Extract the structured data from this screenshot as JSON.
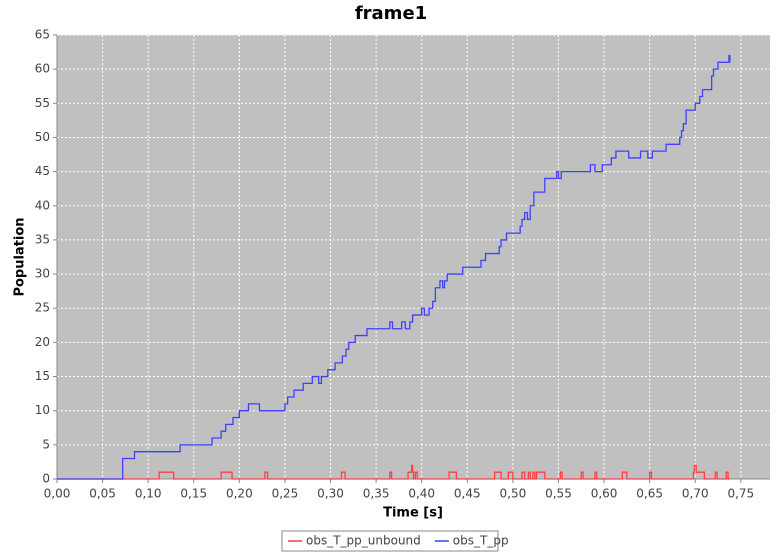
{
  "chart_data": {
    "type": "line",
    "step": true,
    "title": "frame1",
    "x_label": "Time [s]",
    "y_label": "Population",
    "xlim": [
      0,
      0.782
    ],
    "ylim": [
      0,
      65
    ],
    "xticks": [
      {
        "value": 0,
        "label": "0,00"
      },
      {
        "value": 0.05,
        "label": "0,05"
      },
      {
        "value": 0.1,
        "label": "0,10"
      },
      {
        "value": 0.15,
        "label": "0,15"
      },
      {
        "value": 0.2,
        "label": "0,20"
      },
      {
        "value": 0.25,
        "label": "0,25"
      },
      {
        "value": 0.3,
        "label": "0,30"
      },
      {
        "value": 0.35,
        "label": "0,35"
      },
      {
        "value": 0.4,
        "label": "0,40"
      },
      {
        "value": 0.45,
        "label": "0,45"
      },
      {
        "value": 0.5,
        "label": "0,50"
      },
      {
        "value": 0.55,
        "label": "0,55"
      },
      {
        "value": 0.6,
        "label": "0,60"
      },
      {
        "value": 0.65,
        "label": "0,65"
      },
      {
        "value": 0.7,
        "label": "0,70"
      },
      {
        "value": 0.75,
        "label": "0,75"
      }
    ],
    "yticks": [
      0,
      5,
      10,
      15,
      20,
      25,
      30,
      35,
      40,
      45,
      50,
      55,
      60,
      65
    ],
    "grid": true,
    "legend": "bottom",
    "series": [
      {
        "name": "obs_T_pp_unbound",
        "color": "#ff4040",
        "x": [
          0,
          0.112,
          0.128,
          0.18,
          0.192,
          0.228,
          0.231,
          0.312,
          0.316,
          0.365,
          0.367,
          0.385,
          0.389,
          0.39,
          0.391,
          0.393,
          0.395,
          0.43,
          0.438,
          0.48,
          0.487,
          0.495,
          0.5,
          0.51,
          0.513,
          0.517,
          0.519,
          0.522,
          0.524,
          0.526,
          0.535,
          0.552,
          0.554,
          0.575,
          0.577,
          0.59,
          0.592,
          0.62,
          0.625,
          0.65,
          0.652,
          0.698,
          0.699,
          0.701,
          0.71,
          0.722,
          0.724,
          0.734,
          0.736,
          0.738
        ],
        "values": [
          0,
          1,
          0,
          1,
          0,
          1,
          0,
          1,
          0,
          1,
          0,
          1,
          2,
          1,
          0,
          1,
          0,
          1,
          0,
          1,
          0,
          1,
          0,
          1,
          0,
          1,
          0,
          1,
          0,
          1,
          0,
          1,
          0,
          1,
          0,
          1,
          0,
          1,
          0,
          1,
          0,
          1,
          2,
          1,
          0,
          1,
          0,
          1,
          0,
          0
        ]
      },
      {
        "name": "obs_T_pp",
        "color": "#4040ff",
        "x": [
          0,
          0.072,
          0.085,
          0.135,
          0.17,
          0.18,
          0.185,
          0.193,
          0.2,
          0.21,
          0.222,
          0.25,
          0.253,
          0.26,
          0.27,
          0.28,
          0.287,
          0.29,
          0.297,
          0.305,
          0.313,
          0.317,
          0.32,
          0.327,
          0.34,
          0.365,
          0.368,
          0.378,
          0.382,
          0.387,
          0.39,
          0.4,
          0.403,
          0.408,
          0.412,
          0.415,
          0.42,
          0.423,
          0.425,
          0.428,
          0.445,
          0.465,
          0.47,
          0.485,
          0.487,
          0.493,
          0.508,
          0.51,
          0.513,
          0.516,
          0.519,
          0.523,
          0.535,
          0.548,
          0.55,
          0.553,
          0.585,
          0.59,
          0.598,
          0.608,
          0.613,
          0.627,
          0.64,
          0.648,
          0.653,
          0.668,
          0.683,
          0.685,
          0.687,
          0.69,
          0.7,
          0.705,
          0.708,
          0.718,
          0.72,
          0.725,
          0.737,
          0.738
        ],
        "values": [
          0,
          3,
          4,
          5,
          6,
          7,
          8,
          9,
          10,
          11,
          10,
          11,
          12,
          13,
          14,
          15,
          14,
          15,
          16,
          17,
          18,
          19,
          20,
          21,
          22,
          23,
          22,
          23,
          22,
          23,
          24,
          25,
          24,
          25,
          26,
          28,
          29,
          28,
          29,
          30,
          31,
          32,
          33,
          34,
          35,
          36,
          37,
          38,
          39,
          38,
          40,
          42,
          44,
          45,
          44,
          45,
          46,
          45,
          46,
          47,
          48,
          47,
          48,
          47,
          48,
          49,
          50,
          51,
          52,
          54,
          55,
          56,
          57,
          59,
          60,
          61,
          62,
          61
        ]
      }
    ]
  }
}
